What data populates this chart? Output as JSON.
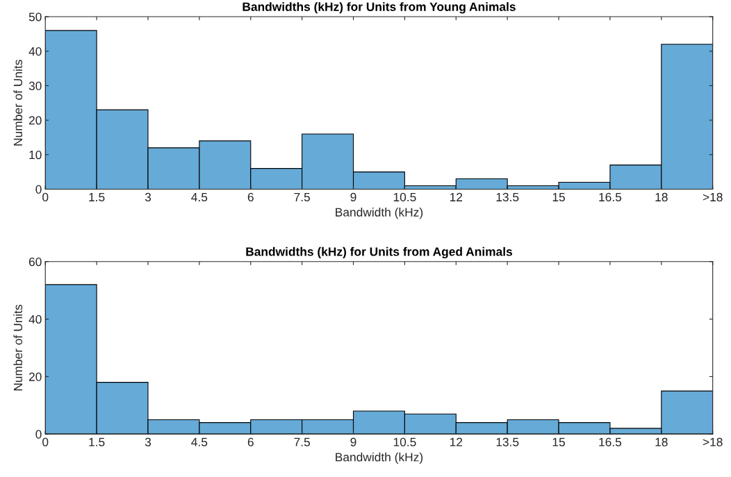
{
  "chart_data": [
    {
      "type": "histogram",
      "title": "Bandwidths (kHz) for Units from Young Animals",
      "xlabel": "Bandwidth (kHz)",
      "ylabel": "Number of Units",
      "color": "#66aad7",
      "bins": [
        0,
        1.5,
        3,
        4.5,
        6,
        7.5,
        9,
        10.5,
        12,
        13.5,
        15,
        16.5,
        18,
        19.5
      ],
      "values": [
        46,
        23,
        12,
        14,
        6,
        16,
        5,
        1,
        3,
        1,
        2,
        7,
        42
      ],
      "xlim": [
        0,
        19.5
      ],
      "xticks": [
        0,
        1.5,
        3,
        4.5,
        6,
        7.5,
        9,
        10.5,
        12,
        13.5,
        15,
        16.5,
        18,
        {
          "value": 19.5,
          "label": ">18"
        }
      ],
      "ylim": [
        0,
        50
      ],
      "yticks": [
        0,
        10,
        20,
        30,
        40,
        50
      ],
      "grid": false
    },
    {
      "type": "histogram",
      "title": "Bandwidths (kHz) for Units from Aged Animals",
      "xlabel": "Bandwidth (kHz)",
      "ylabel": "Number of Units",
      "color": "#66aad7",
      "bins": [
        0,
        1.5,
        3,
        4.5,
        6,
        7.5,
        9,
        10.5,
        12,
        13.5,
        15,
        16.5,
        18,
        19.5
      ],
      "values": [
        52,
        18,
        5,
        4,
        5,
        5,
        8,
        7,
        4,
        5,
        4,
        2,
        15
      ],
      "xlim": [
        0,
        19.5
      ],
      "xticks": [
        0,
        1.5,
        3,
        4.5,
        6,
        7.5,
        9,
        10.5,
        12,
        13.5,
        15,
        16.5,
        18,
        {
          "value": 19.5,
          "label": ">18"
        }
      ],
      "ylim": [
        0,
        60
      ],
      "yticks": [
        0,
        20,
        40,
        60
      ],
      "grid": false
    }
  ]
}
